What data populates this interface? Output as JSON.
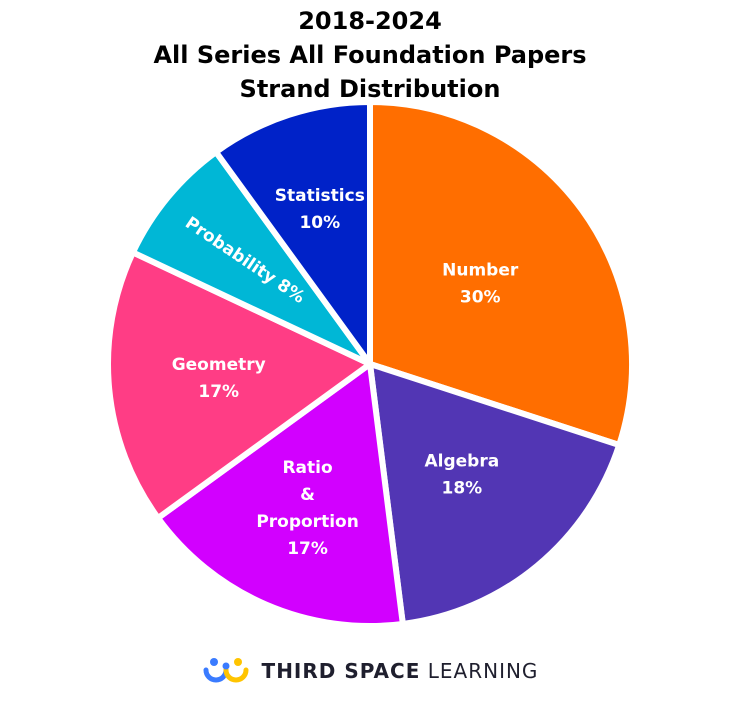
{
  "chart_data": {
    "type": "pie",
    "title_lines": [
      "2018-2024",
      "All Series All Foundation Papers",
      "Strand Distribution"
    ],
    "slices": [
      {
        "name": "Number",
        "value": 30,
        "label_lines": [
          "Number",
          "30%"
        ],
        "color": "#FF6E00"
      },
      {
        "name": "Algebra",
        "value": 18,
        "label_lines": [
          "Algebra",
          "18%"
        ],
        "color": "#5236B4"
      },
      {
        "name": "Ratio & Proportion",
        "value": 17,
        "label_lines": [
          "Ratio",
          "&",
          "Proportion",
          "17%"
        ],
        "color": "#D200FF"
      },
      {
        "name": "Geometry",
        "value": 17,
        "label_lines": [
          "Geometry",
          "17%"
        ],
        "color": "#FF3D85"
      },
      {
        "name": "Probability",
        "value": 8,
        "label_lines": [
          "Probability 8%"
        ],
        "color": "#00B7D6"
      },
      {
        "name": "Statistics",
        "value": 10,
        "label_lines": [
          "Statistics",
          "10%"
        ],
        "color": "#0022C8"
      }
    ]
  },
  "footer": {
    "brand_bold": "THIRD SPACE",
    "brand_light": "LEARNING",
    "logo_colors": [
      "#3A7BFF",
      "#FFC400"
    ]
  }
}
